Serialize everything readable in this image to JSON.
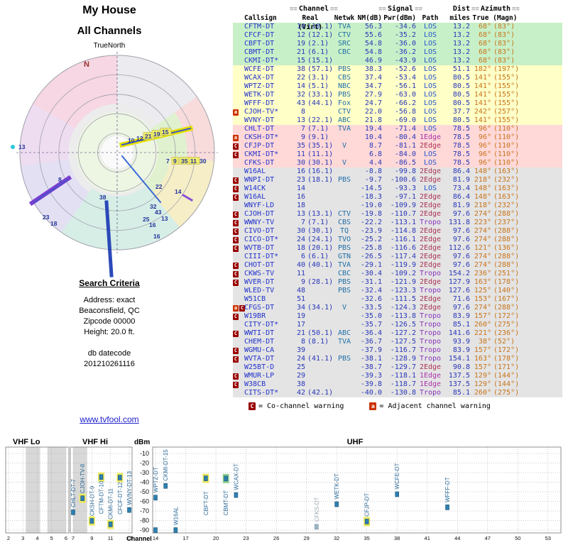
{
  "radar": {
    "title_line1": "My House",
    "title_line2": "All Channels",
    "north_note": "TrueNorth",
    "ring_fracs": [
      0.2,
      0.4,
      0.6,
      0.8,
      1.0
    ],
    "wedges": [
      [
        300,
        360,
        0.5,
        1,
        "#f6d7e3"
      ],
      [
        0,
        55,
        0.5,
        1,
        "#ebebf0"
      ],
      [
        55,
        95,
        0.72,
        1,
        "#f8dbdb"
      ],
      [
        55,
        95,
        0.42,
        0.72,
        "#e0f1cf"
      ],
      [
        95,
        140,
        0.55,
        1,
        "#f5eec6"
      ],
      [
        95,
        140,
        0.3,
        0.55,
        "#e0f1cf"
      ],
      [
        140,
        215,
        0.45,
        1,
        "#d7eee7"
      ],
      [
        215,
        262,
        0.5,
        1,
        "#e3e0f4"
      ],
      [
        262,
        300,
        0.5,
        1,
        "#eedcf1"
      ],
      [
        0,
        360,
        0.18,
        0.42,
        "#edf5e3"
      ]
    ],
    "lines": [
      {
        "x1": 172,
        "y1": 146,
        "x2": 268,
        "y2": 123,
        "w": 7,
        "c": "#e6df00"
      },
      {
        "x1": 172,
        "y1": 146,
        "x2": 268,
        "y2": 123,
        "w": 2,
        "c": "#3a57c8"
      },
      {
        "x1": 45,
        "y1": 228,
        "x2": 97,
        "y2": 193,
        "w": 6,
        "c": "#7a3fd0"
      },
      {
        "x1": 48,
        "y1": 227,
        "x2": 95,
        "y2": 195,
        "w": 1.5,
        "c": "#3a57c8"
      },
      {
        "x1": 150,
        "y1": 227,
        "x2": 157,
        "y2": 330,
        "w": 5,
        "c": "#2b49b8"
      },
      {
        "x1": 172,
        "y1": 162,
        "x2": 226,
        "y2": 227,
        "w": 2,
        "c": "#3a6bd8"
      },
      {
        "x1": 258,
        "y1": 217,
        "x2": 270,
        "y2": 224,
        "w": 3,
        "c": "#8a4fd8"
      }
    ],
    "markers": [
      {
        "t": "N",
        "x": 118,
        "y": 36,
        "c": "#993333",
        "fs": 11
      },
      {
        "t": "13",
        "x": 26,
        "y": 152,
        "dot": "#2cc6dc"
      },
      {
        "t": "8",
        "x": 82,
        "y": 198
      },
      {
        "t": "10",
        "x": 180,
        "y": 143
      },
      {
        "t": "12",
        "x": 192,
        "y": 140
      },
      {
        "t": "21",
        "x": 204,
        "y": 137,
        "box": 1
      },
      {
        "t": "19",
        "x": 216,
        "y": 134,
        "box": 1
      },
      {
        "t": "15",
        "x": 228,
        "y": 131,
        "box": 1
      },
      {
        "t": "7",
        "x": 234,
        "y": 172
      },
      {
        "t": "9",
        "x": 244,
        "y": 172,
        "box": 1
      },
      {
        "t": "35",
        "x": 255,
        "y": 172,
        "box": 1
      },
      {
        "t": "11",
        "x": 268,
        "y": 172,
        "box": 1
      },
      {
        "t": "30",
        "x": 281,
        "y": 172
      },
      {
        "t": "22",
        "x": 219,
        "y": 208
      },
      {
        "t": "14",
        "x": 246,
        "y": 215
      },
      {
        "t": "32",
        "x": 211,
        "y": 236
      },
      {
        "t": "43",
        "x": 218,
        "y": 244
      },
      {
        "t": "13",
        "x": 227,
        "y": 253
      },
      {
        "t": "25",
        "x": 201,
        "y": 254
      },
      {
        "t": "16",
        "x": 210,
        "y": 262
      },
      {
        "t": "16",
        "x": 216,
        "y": 278
      },
      {
        "t": "23",
        "x": 60,
        "y": 251
      },
      {
        "t": "18",
        "x": 71,
        "y": 260
      },
      {
        "t": "38",
        "x": 140,
        "y": 223
      }
    ]
  },
  "search": {
    "heading": "Search Criteria",
    "lines": [
      "Address: exact",
      "Beaconsfield, QC",
      "Zipcode 00000",
      "Height: 20.0 ft."
    ],
    "datecode_label": "db datecode",
    "datecode_value": "201210261116"
  },
  "site_link": "www.tvfool.com",
  "table": {
    "group_headers": {
      "channel": "Channel",
      "signal": "Signal",
      "dist": "Dist",
      "azimuth": "Azimuth"
    },
    "col_headers": {
      "callsign": "Callsign",
      "real_virt": "Real (Virt)",
      "netwk": "Netwk",
      "nm": "NM(dB)",
      "pwr": "Pwr(dBm)",
      "path": "Path",
      "miles": "miles",
      "true_magn": "True (Magn)"
    },
    "band_colors": {
      "g": "#c8f0c8",
      "y": "#ffffc8",
      "p": "#ffd8d8",
      "x": "#e4e4e4"
    },
    "path_colors": {
      "LOS": "#2255cc",
      "1Edge": "#aa33aa",
      "2Edge": "#aa3355",
      "Tropo": "#8833bb"
    },
    "rows": [
      [
        "",
        "CFTM-DT",
        "10",
        "(10.1)",
        "TVA",
        "56.3",
        "-34.6",
        "LOS",
        "13.2",
        "68°",
        "(83°)",
        "g"
      ],
      [
        "",
        "CFCF-DT",
        "12",
        "(12.1)",
        "CTV",
        "55.6",
        "-35.2",
        "LOS",
        "13.2",
        "68°",
        "(83°)",
        "g"
      ],
      [
        "",
        "CBFT-DT",
        "19",
        "(2.1)",
        "SRC",
        "54.8",
        "-36.0",
        "LOS",
        "13.2",
        "68°",
        "(83°)",
        "g"
      ],
      [
        "",
        "CBMT-DT",
        "21",
        "(6.1)",
        "CBC",
        "54.8",
        "-36.2",
        "LOS",
        "13.2",
        "68°",
        "(83°)",
        "g"
      ],
      [
        "",
        "CKMI-DT*",
        "15",
        "(15.1)",
        "",
        "46.9",
        "-43.9",
        "LOS",
        "13.2",
        "68°",
        "(83°)",
        "g"
      ],
      [
        "",
        "WCFE-DT",
        "38",
        "(57.1)",
        "PBS",
        "38.3",
        "-52.6",
        "LOS",
        "51.1",
        "182°",
        "(197°)",
        "y"
      ],
      [
        "",
        "WCAX-DT",
        "22",
        "(3.1)",
        "CBS",
        "37.4",
        "-53.4",
        "LOS",
        "80.5",
        "141°",
        "(155°)",
        "y"
      ],
      [
        "",
        "WPTZ-DT",
        "14",
        "(5.1)",
        "NBC",
        "34.7",
        "-56.1",
        "LOS",
        "80.5",
        "141°",
        "(155°)",
        "y"
      ],
      [
        "",
        "WETK-DT",
        "32",
        "(33.1)",
        "PBS",
        "27.9",
        "-63.0",
        "LOS",
        "80.5",
        "141°",
        "(155°)",
        "y"
      ],
      [
        "",
        "WFFF-DT",
        "43",
        "(44.1)",
        "Fox",
        "24.7",
        "-66.2",
        "LOS",
        "80.5",
        "141°",
        "(155°)",
        "y"
      ],
      [
        "a",
        "CJOH-TV*",
        "8",
        "",
        "CTV",
        "22.0",
        "-56.8",
        "LOS",
        "37.7",
        "242°",
        "(257°)",
        "y"
      ],
      [
        "",
        "WVNY-DT",
        "13",
        "(22.1)",
        "ABC",
        "21.8",
        "-69.0",
        "LOS",
        "80.5",
        "141°",
        "(155°)",
        "y"
      ],
      [
        "",
        "CHLT-DT",
        "7",
        "(7.1)",
        "TVA",
        "19.4",
        "-71.4",
        "LOS",
        "78.5",
        "96°",
        "(110°)",
        "p"
      ],
      [
        "a",
        "CKSH-DT*",
        "9",
        "(9.1)",
        "",
        "10.4",
        "-80.4",
        "1Edge",
        "78.5",
        "96°",
        "(110°)",
        "p"
      ],
      [
        "C",
        "CFJP-DT",
        "35",
        "(35.1)",
        "V",
        "8.7",
        "-81.1",
        "2Edge",
        "78.5",
        "96°",
        "(110°)",
        "p"
      ],
      [
        "C",
        "CKMI-DT*",
        "11",
        "(11.1)",
        "",
        "6.8",
        "-84.0",
        "LOS",
        "78.5",
        "96°",
        "(110°)",
        "p"
      ],
      [
        "",
        "CFKS-DT",
        "30",
        "(30.1)",
        "V",
        "4.4",
        "-86.5",
        "LOS",
        "78.5",
        "96°",
        "(110°)",
        "p"
      ],
      [
        "",
        "W16AL",
        "16",
        "(16.1)",
        "",
        "-8.8",
        "-99.8",
        "2Edge",
        "86.4",
        "148°",
        "(163°)",
        "x"
      ],
      [
        "C",
        "WNPI-DT",
        "23",
        "(18.1)",
        "PBS",
        "-9.7",
        "-100.6",
        "2Edge",
        "81.9",
        "218°",
        "(232°)",
        "x"
      ],
      [
        "C",
        "W14CK",
        "14",
        "",
        "",
        "-14.5",
        "-93.3",
        "LOS",
        "73.4",
        "148°",
        "(163°)",
        "x"
      ],
      [
        "C",
        "W16AL",
        "16",
        "",
        "",
        "-18.3",
        "-97.1",
        "2Edge",
        "86.4",
        "148°",
        "(163°)",
        "x"
      ],
      [
        "",
        "WNYF-LD",
        "18",
        "",
        "",
        "-19.0",
        "-109.9",
        "2Edge",
        "81.9",
        "218°",
        "(232°)",
        "x"
      ],
      [
        "C",
        "CJOH-DT",
        "13",
        "(13.1)",
        "CTV",
        "-19.8",
        "-110.7",
        "2Edge",
        "97.6",
        "274°",
        "(288°)",
        "x"
      ],
      [
        "C",
        "WWNY-TV",
        "7",
        "(7.1)",
        "CBS",
        "-22.2",
        "-113.1",
        "Tropo",
        "131.8",
        "223°",
        "(237°)",
        "x"
      ],
      [
        "C",
        "CIVO-DT",
        "30",
        "(30.1)",
        "TQ",
        "-23.9",
        "-114.8",
        "2Edge",
        "97.6",
        "274°",
        "(288°)",
        "x"
      ],
      [
        "C",
        "CICO-DT*",
        "24",
        "(24.1)",
        "TVO",
        "-25.2",
        "-116.1",
        "2Edge",
        "97.6",
        "274°",
        "(288°)",
        "x"
      ],
      [
        "C",
        "WVTB-DT",
        "18",
        "(20.1)",
        "PBS",
        "-25.8",
        "-116.6",
        "2Edge",
        "112.6",
        "121°",
        "(136°)",
        "x"
      ],
      [
        "",
        "CIII-DT*",
        "6",
        "(6.1)",
        "GTN",
        "-26.5",
        "-117.4",
        "2Edge",
        "97.6",
        "274°",
        "(288°)",
        "x"
      ],
      [
        "C",
        "CHOT-DT",
        "40",
        "(40.1)",
        "TVA",
        "-29.1",
        "-119.9",
        "2Edge",
        "97.6",
        "274°",
        "(288°)",
        "x"
      ],
      [
        "C",
        "CKWS-TV",
        "11",
        "",
        "CBC",
        "-30.4",
        "-109.2",
        "Tropo",
        "154.2",
        "236°",
        "(251°)",
        "x"
      ],
      [
        "C",
        "WVER-DT",
        "9",
        "(28.1)",
        "PBS",
        "-31.1",
        "-121.9",
        "2Edge",
        "127.9",
        "163°",
        "(178°)",
        "x"
      ],
      [
        "",
        "WLED-TV",
        "48",
        "",
        "PBS",
        "-32.4",
        "-123.3",
        "Tropo",
        "127.6",
        "125°",
        "(140°)",
        "x"
      ],
      [
        "",
        "W51CB",
        "51",
        "",
        "",
        "-32.6",
        "-111.5",
        "2Edge",
        "71.6",
        "153°",
        "(167°)",
        "x"
      ],
      [
        "aC",
        "CFGS-DT",
        "34",
        "(34.1)",
        "V",
        "-33.5",
        "-124.3",
        "2Edge",
        "97.6",
        "274°",
        "(288°)",
        "x"
      ],
      [
        "C",
        "W19BR",
        "19",
        "",
        "",
        "-35.0",
        "-113.8",
        "Tropo",
        "83.9",
        "157°",
        "(172°)",
        "x"
      ],
      [
        "",
        "CITY-DT*",
        "17",
        "",
        "",
        "-35.7",
        "-126.5",
        "Tropo",
        "85.1",
        "260°",
        "(275°)",
        "x"
      ],
      [
        "C",
        "WWTI-DT",
        "21",
        "(50.1)",
        "ABC",
        "-36.4",
        "-127.2",
        "Tropo",
        "141.6",
        "221°",
        "(236°)",
        "x"
      ],
      [
        "",
        "CHEM-DT",
        "8",
        "(8.1)",
        "TVA",
        "-36.7",
        "-127.5",
        "Tropo",
        "93.9",
        "38°",
        "(52°)",
        "x"
      ],
      [
        "C",
        "WGMU-CA",
        "39",
        "",
        "",
        "-37.9",
        "-116.7",
        "Tropo",
        "83.9",
        "157°",
        "(172°)",
        "x"
      ],
      [
        "C",
        "WVTA-DT",
        "24",
        "(41.1)",
        "PBS",
        "-38.1",
        "-128.9",
        "Tropo",
        "154.1",
        "163°",
        "(178°)",
        "x"
      ],
      [
        "",
        "W25BT-D",
        "25",
        "",
        "",
        "-38.7",
        "-129.7",
        "2Edge",
        "90.8",
        "157°",
        "(171°)",
        "x"
      ],
      [
        "C",
        "WMUR-LP",
        "29",
        "",
        "",
        "-39.3",
        "-118.1",
        "1Edge",
        "137.5",
        "129°",
        "(144°)",
        "x"
      ],
      [
        "C",
        "W38CB",
        "38",
        "",
        "",
        "-39.8",
        "-118.7",
        "1Edge",
        "137.5",
        "129°",
        "(144°)",
        "x"
      ],
      [
        "",
        "CITS-DT*",
        "42",
        "(42.1)",
        "",
        "-40.0",
        "-130.8",
        "Tropo",
        "85.1",
        "260°",
        "(275°)",
        "x"
      ]
    ],
    "legend": {
      "co_badge": "C",
      "co_text": "= Co-channel warning",
      "adj_badge": "a",
      "adj_text": "= Adjacent channel warning"
    }
  },
  "chart_data": {
    "type": "scatter",
    "ylabel": "dBm",
    "xlabel": "Channel",
    "ylim": [
      -93,
      -3
    ],
    "yticks": [
      -10,
      -20,
      -30,
      -40,
      -50,
      -60,
      -70,
      -80,
      -90
    ],
    "bands": [
      {
        "label": "VHF Lo",
        "ticks": [
          2,
          3,
          4,
          5,
          6
        ]
      },
      {
        "label": "VHF Hi",
        "ticks": [
          7,
          9,
          11,
          13
        ]
      },
      {
        "label": "UHF",
        "ticks": [
          14,
          17,
          20,
          23,
          26,
          29,
          32,
          35,
          38,
          41,
          44,
          47,
          50,
          53
        ]
      }
    ],
    "gray_spans": [
      [
        3.2,
        4.2
      ],
      [
        4.7,
        6.0
      ],
      [
        7.0,
        8.5
      ]
    ],
    "points": [
      {
        "label": "CHLT-DT-7",
        "ch": 7,
        "dbm": -71.4
      },
      {
        "label": "CJOH-TV-8",
        "ch": 8,
        "dbm": -56.8,
        "halo": "#ece95e"
      },
      {
        "label": "CKSH-DT-9",
        "ch": 9,
        "dbm": -80.4,
        "halo": "#ece95e"
      },
      {
        "label": "CFTM-DT-10",
        "ch": 10,
        "dbm": -34.6,
        "halo": "#ece95e"
      },
      {
        "label": "CKMI-DT-11",
        "ch": 11,
        "dbm": -84.0,
        "halo": "#ece95e"
      },
      {
        "label": "CFCF-DT-12",
        "ch": 12,
        "dbm": -35.2,
        "halo": "#ece95e"
      },
      {
        "label": "WVNY-DT-13",
        "ch": 13,
        "dbm": -69.0
      },
      {
        "label": "WPTZ-DT",
        "ch": 14,
        "dbm": -56.1
      },
      {
        "label": "CKMI-DT-15",
        "ch": 15,
        "dbm": -43.9
      },
      {
        "label": "W16AL",
        "ch": 16,
        "dbm": -97.1
      },
      {
        "label": "CBFT-DT",
        "ch": 19,
        "dbm": -36.0,
        "halo": "#ece95e"
      },
      {
        "label": "CBMT-DT",
        "ch": 21,
        "dbm": -36.2,
        "halo": "#8fd08f"
      },
      {
        "label": "WCAX-DT",
        "ch": 22,
        "dbm": -53.4
      },
      {
        "label": "CFKS-DT",
        "ch": 30,
        "dbm": -86.5,
        "muted": true
      },
      {
        "label": "WETK-DT",
        "ch": 32,
        "dbm": -63.0
      },
      {
        "label": "CFJP-DT",
        "ch": 35,
        "dbm": -81.1,
        "halo": "#ece95e"
      },
      {
        "label": "WCFE-DT",
        "ch": 38,
        "dbm": -52.6
      },
      {
        "label": "WFFF-DT",
        "ch": 43,
        "dbm": -66.2
      },
      {
        "label": "",
        "ch": 14,
        "dbm": -93.3
      }
    ]
  }
}
